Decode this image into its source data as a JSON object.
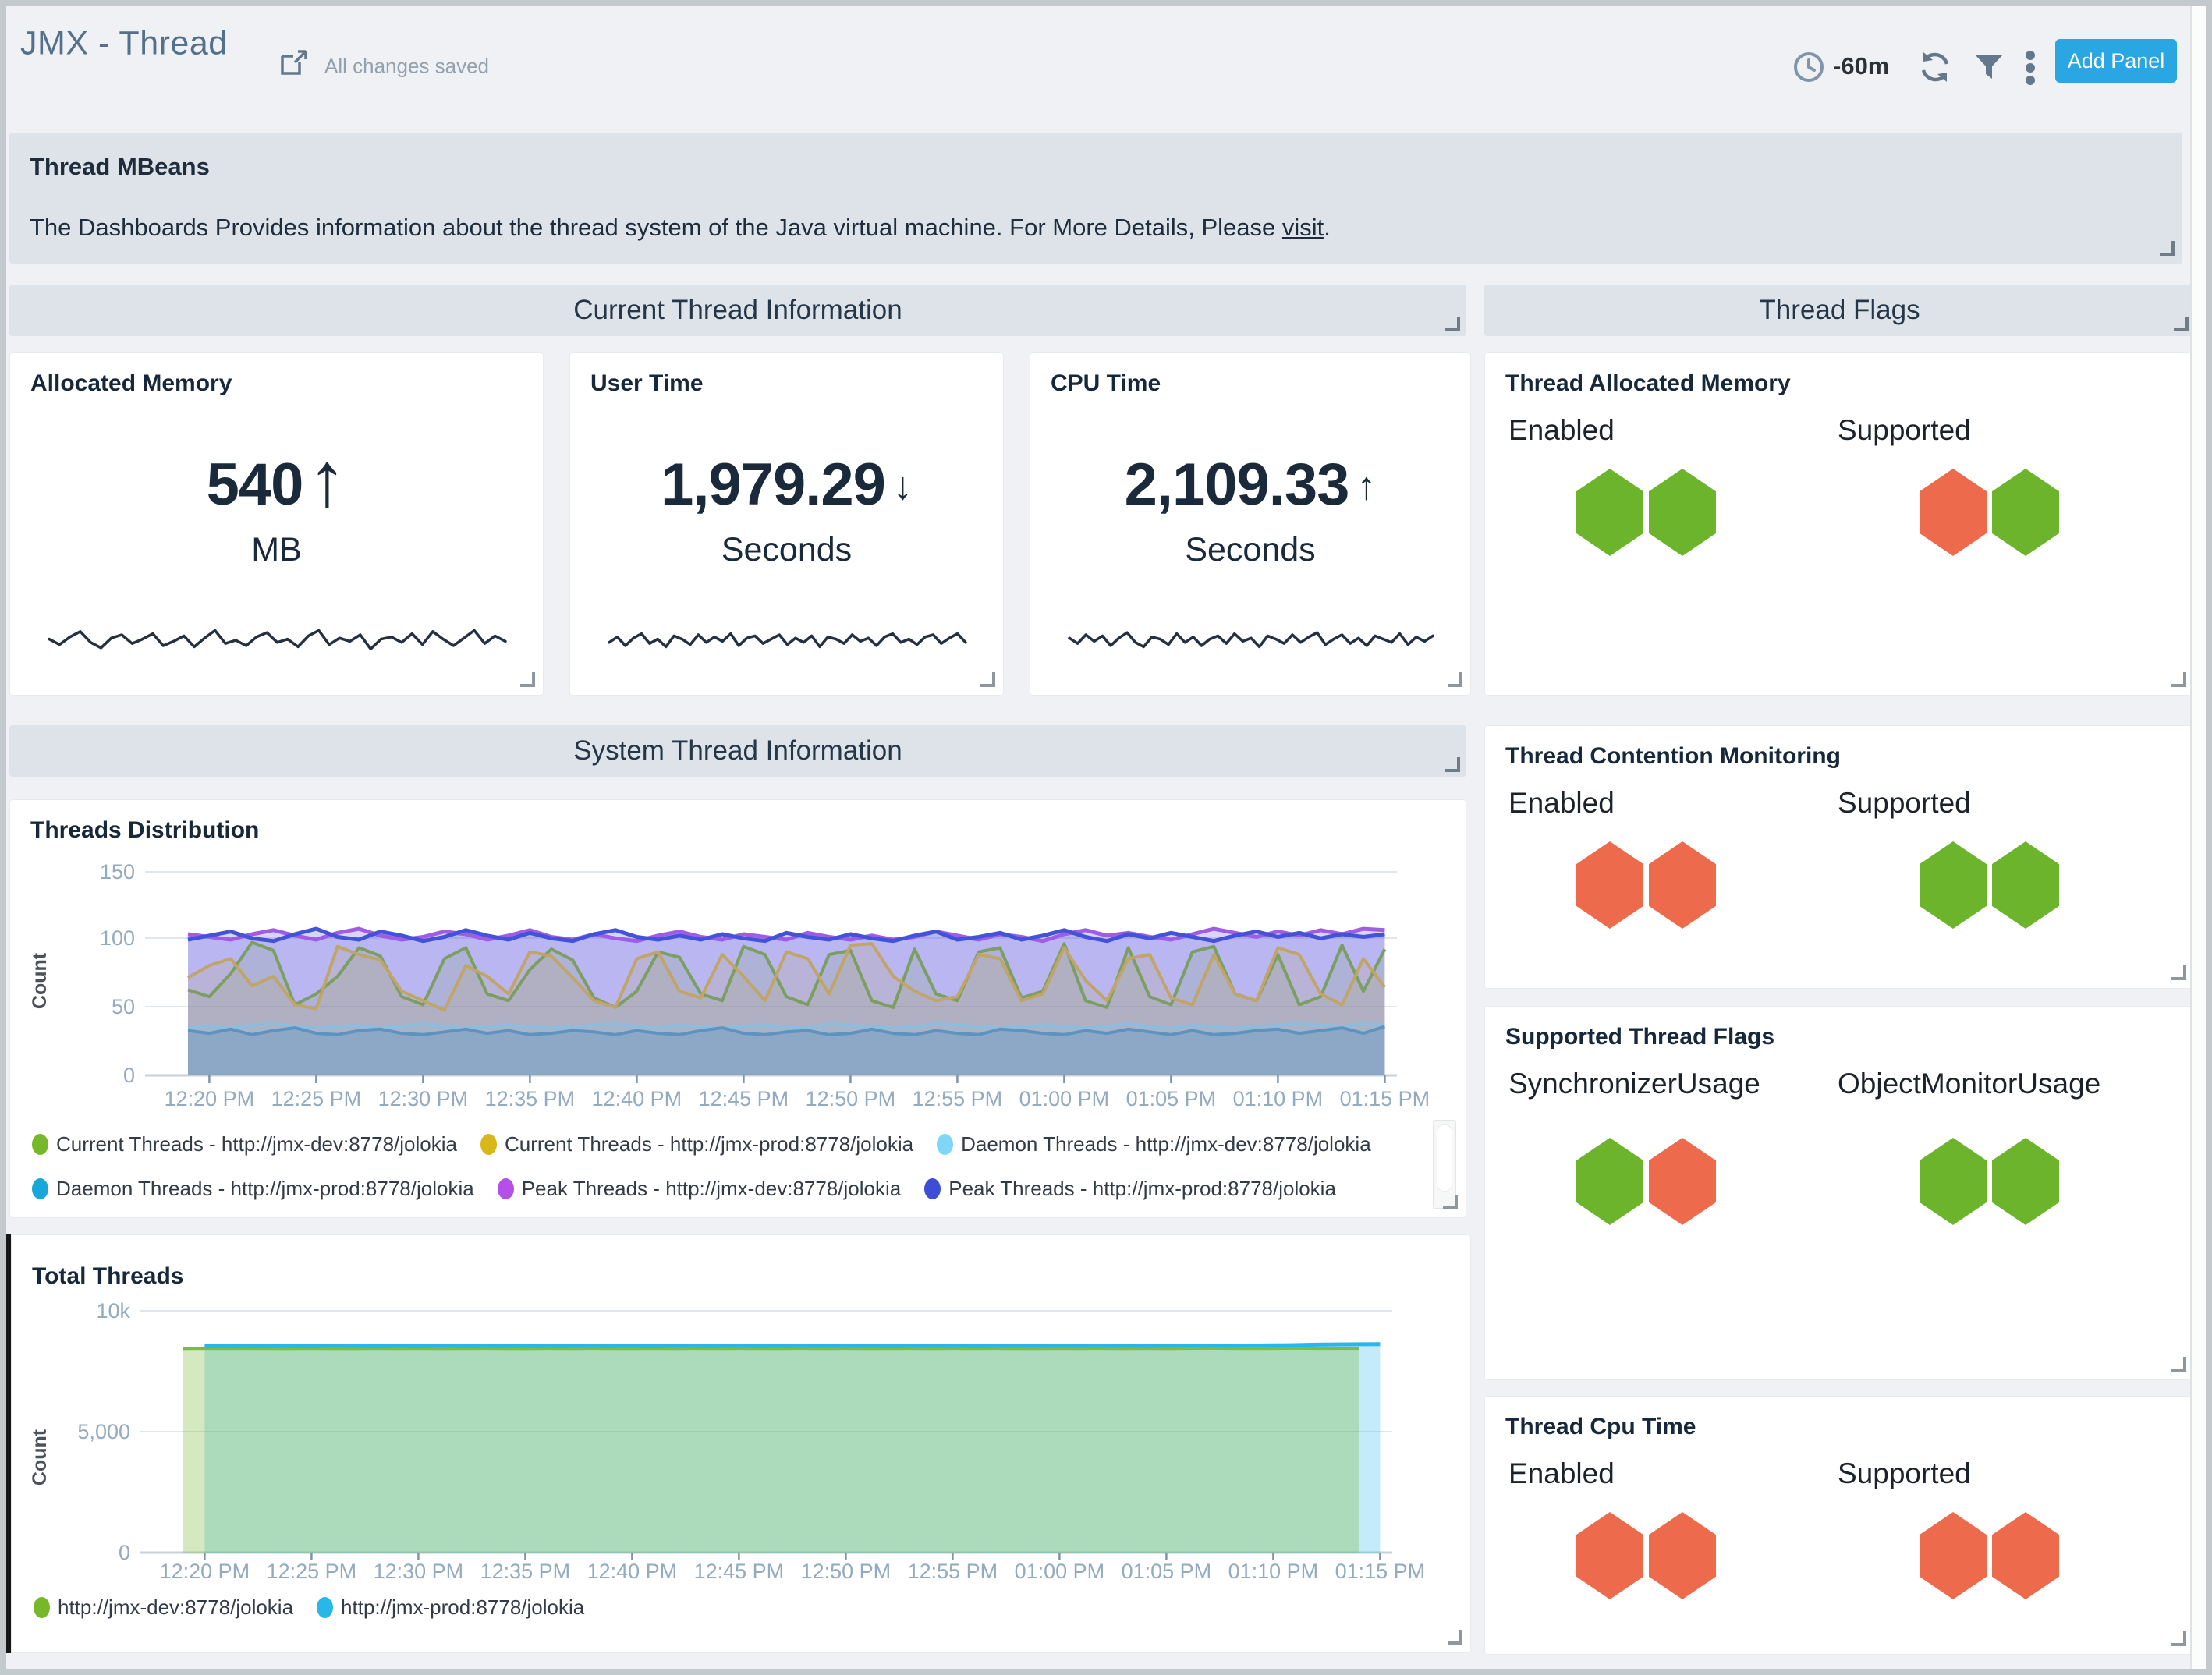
{
  "header": {
    "title": "JMX - Thread",
    "saved_status": "All changes saved",
    "time_range": "-60m",
    "add_panel_label": "Add Panel"
  },
  "mbeans": {
    "title": "Thread MBeans",
    "description_prefix": "The Dashboards Provides information about the thread system of the Java virtual machine. For More Details, Please ",
    "link_text": "visit",
    "description_suffix": "."
  },
  "sections": {
    "current_thread": "Current Thread Information",
    "thread_flags": "Thread Flags",
    "system_thread": "System Thread Information"
  },
  "metrics": [
    {
      "title": "Allocated Memory",
      "value": "540",
      "unit": "MB",
      "trend": "up",
      "arrow_style": "big"
    },
    {
      "title": "User Time",
      "value": "1,979.29",
      "unit": "Seconds",
      "trend": "down",
      "arrow_style": "small"
    },
    {
      "title": "CPU Time",
      "value": "2,109.33",
      "unit": "Seconds",
      "trend": "up",
      "arrow_style": "small"
    }
  ],
  "flags_panels": [
    {
      "title": "Thread Allocated Memory",
      "groups": [
        {
          "label": "Enabled",
          "hexes": [
            "green",
            "green"
          ]
        },
        {
          "label": "Supported",
          "hexes": [
            "orange",
            "green"
          ]
        }
      ]
    },
    {
      "title": "Thread Contention Monitoring",
      "groups": [
        {
          "label": "Enabled",
          "hexes": [
            "orange",
            "orange"
          ]
        },
        {
          "label": "Supported",
          "hexes": [
            "green",
            "green"
          ]
        }
      ]
    },
    {
      "title": "Supported Thread Flags",
      "groups": [
        {
          "label": "SynchronizerUsage",
          "hexes": [
            "green",
            "orange"
          ]
        },
        {
          "label": "ObjectMonitorUsage",
          "hexes": [
            "green",
            "green"
          ]
        }
      ]
    },
    {
      "title": "Thread Cpu Time",
      "groups": [
        {
          "label": "Enabled",
          "hexes": [
            "orange",
            "orange"
          ]
        },
        {
          "label": "Supported",
          "hexes": [
            "orange",
            "orange"
          ]
        }
      ]
    }
  ],
  "colors": {
    "hex_green": "#6cb42c",
    "hex_orange": "#ee6a4c",
    "accent_blue": "#2aa7e2",
    "metric_navy": "#1b2a3a"
  },
  "chart_data": {
    "threads_distribution": {
      "type": "line",
      "title": "Threads Distribution",
      "ylabel": "Count",
      "ylim": [
        0,
        150
      ],
      "yticks": [
        0,
        50,
        100,
        150
      ],
      "x_tick_labels": [
        "12:20 PM",
        "12:25 PM",
        "12:30 PM",
        "12:35 PM",
        "12:40 PM",
        "12:45 PM",
        "12:50 PM",
        "12:55 PM",
        "01:00 PM",
        "01:05 PM",
        "01:10 PM",
        "01:15 PM"
      ],
      "series": [
        {
          "name": "Current Threads - http://jmx-dev:8778/jolokia",
          "line_color": "#7d9e62",
          "fill": "rgba(125,158,98,0.18)",
          "legend_color": "#76b82a",
          "width": 4,
          "values": [
            63,
            58,
            75,
            98,
            92,
            52,
            60,
            73,
            94,
            88,
            58,
            52,
            86,
            94,
            60,
            55,
            78,
            93,
            85,
            57,
            50,
            62,
            91,
            87,
            60,
            55,
            95,
            89,
            58,
            52,
            89,
            92,
            55,
            50,
            93,
            60,
            55,
            91,
            94,
            57,
            62,
            97,
            55,
            50,
            94,
            58,
            52,
            91,
            95,
            60,
            55,
            89,
            52,
            58,
            96,
            62,
            93
          ]
        },
        {
          "name": "Current Threads - http://jmx-prod:8778/jolokia",
          "line_color": "#c0a468",
          "fill": "rgba(192,164,104,0.18)",
          "legend_color": "#d9b719",
          "width": 4,
          "values": [
            72,
            81,
            86,
            66,
            73,
            52,
            49,
            95,
            89,
            85,
            62,
            55,
            48,
            81,
            73,
            60,
            91,
            88,
            72,
            55,
            50,
            86,
            91,
            62,
            57,
            89,
            73,
            55,
            91,
            86,
            60,
            96,
            97,
            73,
            62,
            55,
            58,
            89,
            86,
            55,
            60,
            94,
            70,
            55,
            86,
            89,
            57,
            52,
            89,
            60,
            55,
            94,
            89,
            60,
            52,
            86,
            65
          ]
        },
        {
          "name": "Daemon Threads - http://jmx-dev:8778/jolokia",
          "line_color": "#8fbcdc",
          "fill": "rgba(143,188,220,0.30)",
          "legend_color": "#7fd6f7",
          "width": 4,
          "values": [
            35,
            36,
            35,
            37,
            38,
            36,
            35,
            36,
            37,
            35,
            36,
            38,
            36,
            35,
            36,
            37,
            36,
            35,
            36,
            37,
            38,
            36,
            35,
            37,
            36,
            35,
            36,
            37,
            36,
            35,
            38,
            37,
            36,
            35,
            36,
            38,
            37,
            36,
            35,
            36,
            37,
            36,
            35,
            36,
            38,
            36,
            35,
            37,
            36,
            35,
            36,
            37,
            38,
            37,
            36,
            38,
            37
          ]
        },
        {
          "name": "Daemon Threads - http://jmx-prod:8778/jolokia",
          "line_color": "#5e93c0",
          "fill": "rgba(94,147,192,0.35)",
          "legend_color": "#17a8da",
          "width": 4,
          "values": [
            33,
            31,
            34,
            30,
            33,
            35,
            31,
            30,
            33,
            34,
            31,
            30,
            32,
            34,
            31,
            33,
            30,
            31,
            33,
            32,
            30,
            33,
            31,
            30,
            33,
            35,
            31,
            30,
            32,
            33,
            30,
            31,
            34,
            31,
            30,
            33,
            31,
            30,
            34,
            33,
            31,
            30,
            33,
            31,
            34,
            32,
            30,
            33,
            30,
            31,
            33,
            34,
            31,
            33,
            35,
            31,
            36
          ]
        },
        {
          "name": "Peak Threads - http://jmx-dev:8778/jolokia",
          "line_color": "#a05ce6",
          "fill": "rgba(139,108,235,0.30)",
          "legend_color": "#b44fe8",
          "width": 5,
          "values": [
            104,
            102,
            100,
            104,
            107,
            103,
            100,
            105,
            108,
            103,
            100,
            102,
            106,
            104,
            100,
            103,
            107,
            102,
            100,
            104,
            101,
            99,
            103,
            106,
            102,
            100,
            104,
            102,
            100,
            105,
            102,
            100,
            103,
            100,
            102,
            106,
            103,
            100,
            104,
            102,
            99,
            104,
            107,
            103,
            105,
            102,
            100,
            104,
            108,
            105,
            102,
            106,
            103,
            107,
            104,
            108,
            107
          ]
        },
        {
          "name": "Peak Threads - http://jmx-prod:8778/jolokia",
          "line_color": "#4353d8",
          "fill": "rgba(80,95,220,0.25)",
          "legend_color": "#3c4ed8",
          "width": 5,
          "values": [
            100,
            103,
            106,
            101,
            99,
            104,
            108,
            102,
            100,
            106,
            103,
            99,
            102,
            107,
            103,
            100,
            105,
            101,
            99,
            104,
            107,
            102,
            100,
            103,
            100,
            104,
            101,
            99,
            105,
            102,
            100,
            104,
            101,
            99,
            103,
            106,
            100,
            102,
            105,
            100,
            103,
            107,
            102,
            99,
            104,
            101,
            105,
            102,
            99,
            103,
            106,
            102,
            105,
            101,
            104,
            102,
            104
          ]
        }
      ],
      "legend_row1": [
        0,
        1,
        2
      ],
      "legend_row2": [
        3,
        4,
        5
      ]
    },
    "total_threads": {
      "type": "area",
      "title": "Total Threads",
      "ylabel": "Count",
      "ylim": [
        0,
        10000
      ],
      "ytick_labels": [
        "0",
        "5,000",
        "10k"
      ],
      "ytick_values": [
        0,
        5000,
        10000
      ],
      "x_tick_labels": [
        "12:20 PM",
        "12:25 PM",
        "12:30 PM",
        "12:35 PM",
        "12:40 PM",
        "12:45 PM",
        "12:50 PM",
        "12:55 PM",
        "01:00 PM",
        "01:05 PM",
        "01:10 PM",
        "01:15 PM"
      ],
      "series": [
        {
          "name": "http://jmx-dev:8778/jolokia",
          "line_color": "#7cbd3c",
          "fill": "rgba(124,189,60,0.33)",
          "legend_color": "#76b82a",
          "width": 4,
          "end_trim": 1,
          "start_trim": 0,
          "values": [
            8440,
            8448,
            8442,
            8450,
            8445,
            8440,
            8448,
            8444,
            8440,
            8450,
            8446,
            8448,
            8441,
            8445,
            8450,
            8445,
            8440,
            8448,
            8445,
            8450,
            8445,
            8441,
            8448,
            8445,
            8450,
            8446,
            8448,
            8441,
            8445,
            8450,
            8445,
            8448,
            8445,
            8441,
            8450,
            8446,
            8448,
            8445,
            8450,
            8445,
            8441,
            8448,
            8445,
            8450,
            8446,
            8448,
            8445,
            8450,
            8455,
            8450,
            8446,
            8450,
            8455,
            8450,
            8448,
            8452,
            8450
          ]
        },
        {
          "name": "http://jmx-prod:8778/jolokia",
          "line_color": "#29b6e9",
          "fill": "rgba(41,182,233,0.28)",
          "legend_color": "#29b6e9",
          "width": 5,
          "end_trim": 0,
          "start_trim": 1,
          "values": [
            8540,
            8546,
            8541,
            8548,
            8545,
            8540,
            8546,
            8550,
            8545,
            8541,
            8548,
            8545,
            8550,
            8546,
            8548,
            8545,
            8541,
            8548,
            8545,
            8550,
            8545,
            8548,
            8546,
            8550,
            8548,
            8545,
            8550,
            8546,
            8548,
            8550,
            8545,
            8550,
            8548,
            8546,
            8550,
            8548,
            8550,
            8545,
            8550,
            8548,
            8550,
            8555,
            8550,
            8548,
            8555,
            8550,
            8556,
            8560,
            8555,
            8560,
            8566,
            8572,
            8582,
            8600,
            8610,
            8616,
            8620
          ]
        }
      ]
    },
    "sparklines": {
      "allocated_memory": [
        0.1,
        -0.4,
        0.3,
        0.8,
        -0.2,
        -0.7,
        0.2,
        0.5,
        -0.3,
        0.1,
        0.6,
        -0.5,
        -0.1,
        0.4,
        -0.6,
        0.2,
        0.9,
        -0.3,
        0,
        -0.5,
        0.3,
        0.7,
        -0.2,
        0.1,
        -0.6,
        0.4,
        0.9,
        -0.4,
        0.2,
        -0.1,
        0.5,
        -0.8,
        0.1,
        0.3,
        -0.2,
        0.6,
        -0.4,
        0.8,
        0.1,
        -0.5,
        0.2,
        0.9,
        -0.3,
        0.4,
        -0.1
      ],
      "user_time": [
        -0.2,
        0.3,
        -0.5,
        0.2,
        0.6,
        -0.3,
        0.1,
        -0.6,
        0.4,
        0.1,
        -0.4,
        0.5,
        -0.2,
        0.3,
        -0.1,
        0.6,
        -0.5,
        0.2,
        0.4,
        -0.3,
        0.1,
        0.5,
        -0.4,
        0.2,
        -0.2,
        0.4,
        -0.6,
        0.3,
        0.1,
        -0.3,
        0.5,
        -0.1,
        0.2,
        -0.5,
        0.3,
        0.6,
        -0.2,
        0.1,
        -0.4,
        0.3,
        0.5,
        -0.3,
        0.2,
        0.6,
        -0.2
      ],
      "cpu_time": [
        0.2,
        -0.3,
        0.5,
        -0.1,
        0.4,
        -0.5,
        0.2,
        0.7,
        -0.2,
        -0.6,
        0.3,
        0.1,
        -0.4,
        0.6,
        -0.2,
        0.3,
        -0.5,
        0.1,
        0.4,
        -0.3,
        0.6,
        -0.1,
        0.2,
        -0.6,
        0.4,
        0.1,
        -0.3,
        0.5,
        -0.2,
        0.3,
        0.7,
        -0.4,
        0.1,
        0.5,
        -0.3,
        0.2,
        -0.5,
        0.4,
        0.1,
        -0.2,
        0.6,
        -0.4,
        0.3,
        -0.1,
        0.4
      ]
    }
  }
}
